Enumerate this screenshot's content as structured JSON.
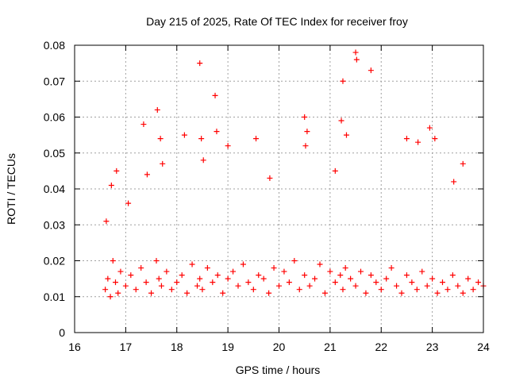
{
  "chart_data": {
    "type": "scatter",
    "title": "Day 215 of 2025, Rate Of TEC Index for receiver froy",
    "xlabel": "GPS time / hours",
    "ylabel": "ROTI / TECUs",
    "xlim": [
      16,
      24
    ],
    "ylim": [
      0,
      0.08
    ],
    "x_ticks": [
      "16",
      "17",
      "18",
      "19",
      "20",
      "21",
      "22",
      "23",
      "24"
    ],
    "y_ticks": [
      "0",
      "0.01",
      "0.02",
      "0.03",
      "0.04",
      "0.05",
      "0.06",
      "0.07",
      "0.08"
    ],
    "grid": true,
    "marker": "+",
    "series": [
      {
        "name": "ROTI",
        "color": "#ff0000",
        "x": [
          16.6,
          16.65,
          16.7,
          16.75,
          16.8,
          16.85,
          16.9,
          17.0,
          17.1,
          17.2,
          17.3,
          17.4,
          17.5,
          17.6,
          17.65,
          17.7,
          17.8,
          17.9,
          18.0,
          18.1,
          18.2,
          18.3,
          18.4,
          18.45,
          18.5,
          18.6,
          18.7,
          18.8,
          18.9,
          19.0,
          19.1,
          19.2,
          19.3,
          19.4,
          19.5,
          19.6,
          19.7,
          19.8,
          19.9,
          20.0,
          20.1,
          20.2,
          20.3,
          20.4,
          20.5,
          20.6,
          20.7,
          20.8,
          20.9,
          21.0,
          21.1,
          21.2,
          21.25,
          21.3,
          21.4,
          21.5,
          21.6,
          21.7,
          21.8,
          21.9,
          22.0,
          22.1,
          22.2,
          22.3,
          22.4,
          22.5,
          22.6,
          22.7,
          22.8,
          22.9,
          23.0,
          23.1,
          23.2,
          23.3,
          23.4,
          23.5,
          23.6,
          23.7,
          23.8,
          23.9,
          24.0,
          16.62,
          16.72,
          16.82,
          17.05,
          17.35,
          17.62,
          17.68,
          18.15,
          18.45,
          18.48,
          18.75,
          18.78,
          19.0,
          19.55,
          20.5,
          20.55,
          21.1,
          21.22,
          21.25,
          21.5,
          21.52,
          21.8,
          22.5,
          22.95,
          23.05,
          23.6,
          17.42,
          17.72,
          18.52,
          19.82,
          20.52,
          21.32,
          22.72,
          23.42
        ],
        "y": [
          0.012,
          0.015,
          0.01,
          0.02,
          0.014,
          0.011,
          0.017,
          0.013,
          0.016,
          0.012,
          0.018,
          0.014,
          0.011,
          0.02,
          0.015,
          0.013,
          0.017,
          0.012,
          0.014,
          0.016,
          0.011,
          0.019,
          0.013,
          0.015,
          0.012,
          0.018,
          0.014,
          0.016,
          0.011,
          0.015,
          0.017,
          0.013,
          0.019,
          0.014,
          0.012,
          0.016,
          0.015,
          0.011,
          0.018,
          0.013,
          0.017,
          0.014,
          0.02,
          0.012,
          0.016,
          0.013,
          0.015,
          0.019,
          0.011,
          0.017,
          0.014,
          0.016,
          0.012,
          0.018,
          0.015,
          0.013,
          0.017,
          0.011,
          0.016,
          0.014,
          0.012,
          0.015,
          0.018,
          0.013,
          0.011,
          0.016,
          0.014,
          0.012,
          0.017,
          0.013,
          0.015,
          0.011,
          0.014,
          0.012,
          0.016,
          0.013,
          0.011,
          0.015,
          0.012,
          0.014,
          0.013,
          0.031,
          0.041,
          0.045,
          0.036,
          0.058,
          0.062,
          0.054,
          0.055,
          0.075,
          0.054,
          0.066,
          0.056,
          0.052,
          0.054,
          0.06,
          0.056,
          0.045,
          0.059,
          0.07,
          0.078,
          0.076,
          0.073,
          0.054,
          0.057,
          0.054,
          0.047,
          0.044,
          0.047,
          0.048,
          0.043,
          0.052,
          0.055,
          0.053,
          0.042
        ]
      }
    ]
  }
}
